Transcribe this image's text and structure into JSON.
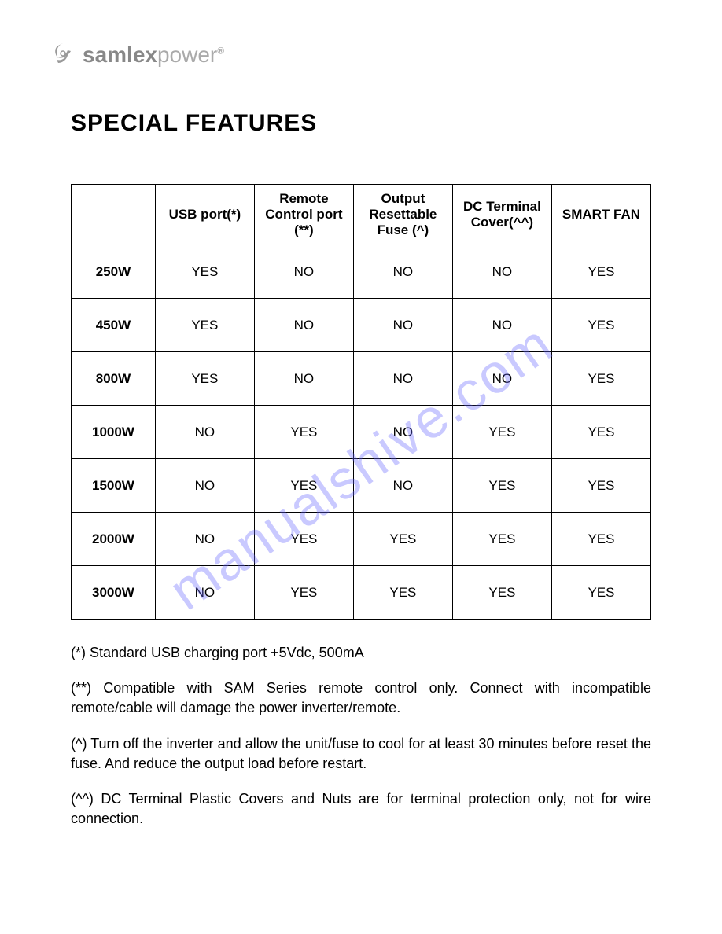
{
  "logo": {
    "bold": "samlex",
    "light": "power",
    "reg": "®"
  },
  "title": "SPECIAL FEATURES",
  "watermark": "manualshive.com",
  "table": {
    "columns": [
      "",
      "USB port(*)",
      "Remote Control port (**)",
      "Output Resettable Fuse (^)",
      "DC Terminal Cover(^^)",
      "SMART FAN"
    ],
    "rows": [
      {
        "model": "250W",
        "cells": [
          "YES",
          "NO",
          "NO",
          "NO",
          "YES"
        ]
      },
      {
        "model": "450W",
        "cells": [
          "YES",
          "NO",
          "NO",
          "NO",
          "YES"
        ]
      },
      {
        "model": "800W",
        "cells": [
          "YES",
          "NO",
          "NO",
          "NO",
          "YES"
        ]
      },
      {
        "model": "1000W",
        "cells": [
          "NO",
          "YES",
          "NO",
          "YES",
          "YES"
        ]
      },
      {
        "model": "1500W",
        "cells": [
          "NO",
          "YES",
          "NO",
          "YES",
          "YES"
        ]
      },
      {
        "model": "2000W",
        "cells": [
          "NO",
          "YES",
          "YES",
          "YES",
          "YES"
        ]
      },
      {
        "model": "3000W",
        "cells": [
          "NO",
          "YES",
          "YES",
          "YES",
          "YES"
        ]
      }
    ]
  },
  "footnotes": [
    "(*) Standard USB charging port +5Vdc, 500mA",
    "(**) Compatible with SAM Series remote control only. Connect with incompatible remote/cable will damage the power inverter/remote.",
    "(^) Turn off the inverter and allow the unit/fuse to cool for at least 30 minutes before reset the fuse. And reduce the output load before restart.",
    "(^^) DC Terminal Plastic Covers and Nuts are for terminal protection only, not for wire connection."
  ]
}
